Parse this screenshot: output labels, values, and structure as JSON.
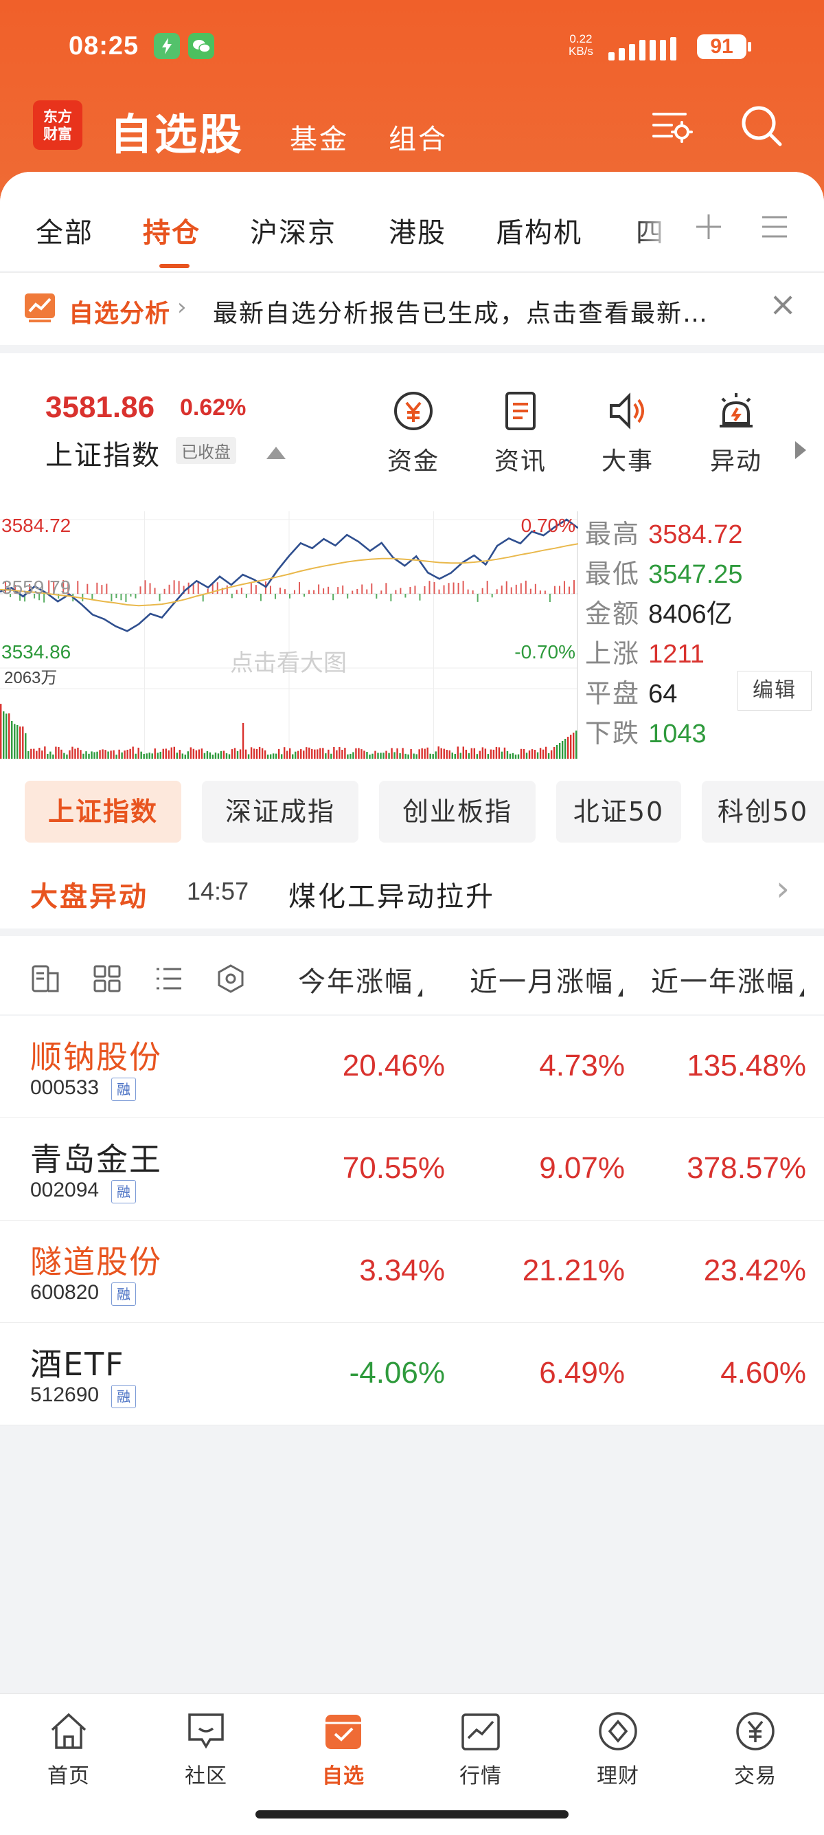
{
  "status_bar": {
    "time": "08:25",
    "net_speed_line1": "0.22",
    "net_speed_line2": "KB/s",
    "battery": "91"
  },
  "header": {
    "logo_line1": "东方",
    "logo_line2": "财富",
    "title": "自选股",
    "nav": [
      "基金",
      "组合"
    ],
    "icons": [
      "settings-list-icon",
      "search-icon"
    ]
  },
  "tabs": {
    "items": [
      "全部",
      "持仓",
      "沪深京",
      "港股",
      "盾构机",
      "四"
    ],
    "active": "持仓",
    "add_icon": "plus-icon",
    "menu_icon": "menu-icon"
  },
  "banner": {
    "label": "自选分析",
    "text": "最新自选分析报告已生成，点击查看最新…",
    "icon": "chart-analysis-icon",
    "close_icon": "close-icon"
  },
  "index": {
    "value": "3581.86",
    "change_pct": "0.62%",
    "name": "上证指数",
    "status": "已收盘",
    "actions": [
      {
        "label": "资金",
        "icon": "yuan-circle-icon"
      },
      {
        "label": "资讯",
        "icon": "news-icon"
      },
      {
        "label": "大事",
        "icon": "speaker-icon"
      },
      {
        "label": "异动",
        "icon": "alarm-icon"
      }
    ]
  },
  "chart_data": {
    "type": "line",
    "series": [
      {
        "name": "",
        "values": [
          3560.5,
          3561.8,
          3558.9,
          3562.3,
          3560.1,
          3557.2,
          3559.6,
          3556.4,
          3552.8,
          3551.3,
          3548.9,
          3547.25,
          3549.6,
          3553.1,
          3551.8,
          3556.4,
          3560.9,
          3564.1,
          3561.9,
          3565.6,
          3562.8,
          3566.2,
          3564.5,
          3562.1,
          3567.7,
          3572.5,
          3576.8,
          3575.1,
          3578.2,
          3576.0,
          3579.6,
          3577.3,
          3574.2,
          3576.9,
          3571.9,
          3569.2,
          3572.4,
          3566.9,
          3564.8,
          3566.8,
          3570.3,
          3572.7,
          3569.6,
          3575.9,
          3578.4,
          3576.7,
          3580.7,
          3579.4,
          3582.3,
          3584.72,
          3581.86
        ]
      },
      {
        "name": "",
        "values": [
          3561.2,
          3561.0,
          3560.6,
          3560.3,
          3559.9,
          3559.4,
          3559.0,
          3558.4,
          3557.8,
          3557.2,
          3556.7,
          3556.1,
          3555.8,
          3556.0,
          3556.3,
          3557.0,
          3557.9,
          3559.0,
          3560.0,
          3561.1,
          3562.1,
          3563.0,
          3563.8,
          3564.6,
          3565.5,
          3566.4,
          3567.4,
          3568.3,
          3569.1,
          3569.8,
          3570.5,
          3571.0,
          3571.4,
          3571.6,
          3571.6,
          3571.4,
          3571.1,
          3570.7,
          3570.3,
          3570.1,
          3570.1,
          3570.4,
          3570.8,
          3571.4,
          3572.1,
          3572.9,
          3573.6,
          3574.4,
          3575.1,
          3575.9,
          3576.6
        ]
      }
    ],
    "prev_close": "3559.79",
    "y_top_label": "3584.72",
    "y_bottom_label": "3534.86",
    "pct_top_label": "0.70%",
    "pct_bottom_label": "-0.70%",
    "ylim": [
      3534.86,
      3584.72
    ],
    "volume_label": "2063万",
    "watermark": "点击看大图",
    "grid": true
  },
  "stats": {
    "high_label": "最高",
    "high": "3584.72",
    "low_label": "最低",
    "low": "3547.25",
    "amount_label": "金额",
    "amount": "8406亿",
    "up_label": "上涨",
    "up": "1211",
    "flat_label": "平盘",
    "flat": "64",
    "down_label": "下跌",
    "down": "1043",
    "edit": "编辑"
  },
  "index_pills": {
    "items": [
      "上证指数",
      "深证成指",
      "创业板指",
      "北证50",
      "科创50"
    ],
    "active": "上证指数"
  },
  "market_move": {
    "label": "大盘异动",
    "time": "14:57",
    "text": "煤化工异动拉升"
  },
  "list_header": {
    "icons": [
      "card-view-icon",
      "grid-view-icon",
      "list-view-icon",
      "settings-hex-icon"
    ],
    "columns": [
      "今年涨幅",
      "近一月涨幅",
      "近一年涨幅"
    ]
  },
  "stocks": [
    {
      "name": "顺钠股份",
      "code": "000533",
      "badge": "融",
      "ytd": "20.46%",
      "m1": "4.73%",
      "y1": "135.48%",
      "hl": true
    },
    {
      "name": "青岛金王",
      "code": "002094",
      "badge": "融",
      "ytd": "70.55%",
      "m1": "9.07%",
      "y1": "378.57%",
      "hl": false
    },
    {
      "name": "隧道股份",
      "code": "600820",
      "badge": "融",
      "ytd": "3.34%",
      "m1": "21.21%",
      "y1": "23.42%",
      "hl": true
    },
    {
      "name": "酒ETF",
      "code": "512690",
      "badge": "融",
      "ytd": "-4.06%",
      "m1": "6.49%",
      "y1": "4.60%",
      "hl": false
    }
  ],
  "tabbar": {
    "items": [
      {
        "label": "首页",
        "icon": "home-icon"
      },
      {
        "label": "社区",
        "icon": "community-icon"
      },
      {
        "label": "自选",
        "icon": "watchlist-icon"
      },
      {
        "label": "行情",
        "icon": "market-icon"
      },
      {
        "label": "理财",
        "icon": "wealth-icon"
      },
      {
        "label": "交易",
        "icon": "trade-icon"
      }
    ],
    "active": "自选"
  },
  "colors": {
    "brand": "#f0602a",
    "accent": "#e8541f",
    "up": "#d9322e",
    "down": "#2e9a3c",
    "line_price": "#2f4f8f",
    "line_avg": "#e9b84b"
  }
}
